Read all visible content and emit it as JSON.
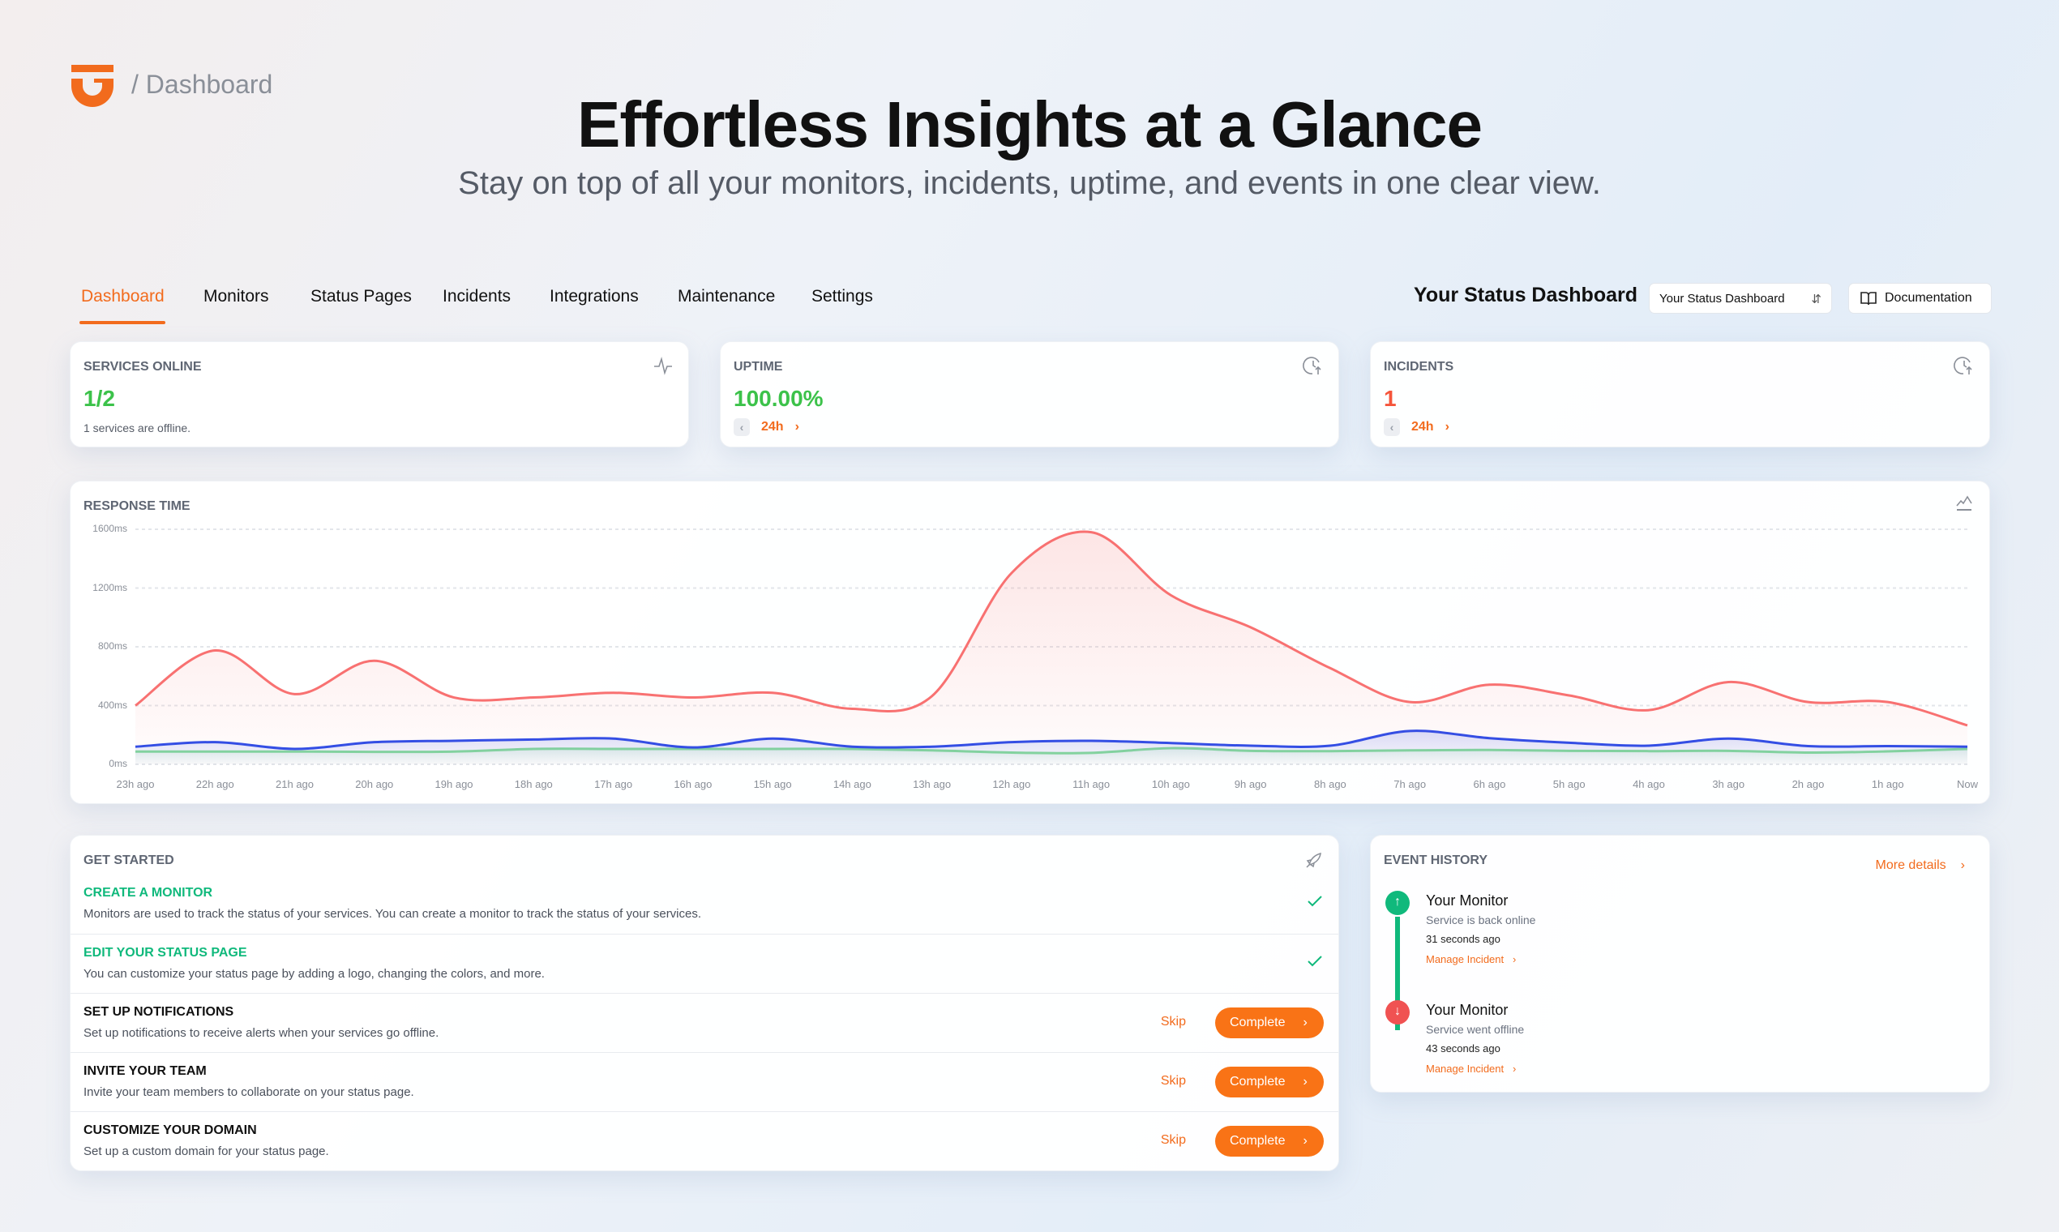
{
  "header": {
    "breadcrumb": "/ Dashboard",
    "title": "Effortless Insights at a Glance",
    "subtitle": "Stay on top of all your monitors, incidents, uptime, and events in one clear view."
  },
  "nav": {
    "tabs": [
      {
        "label": "Dashboard",
        "active": true
      },
      {
        "label": "Monitors"
      },
      {
        "label": "Status Pages"
      },
      {
        "label": "Incidents"
      },
      {
        "label": "Integrations"
      },
      {
        "label": "Maintenance"
      },
      {
        "label": "Settings"
      }
    ],
    "dashboard_title": "Your Status Dashboard",
    "select_value": "Your Status Dashboard",
    "documentation": "Documentation"
  },
  "stats": {
    "services": {
      "label": "SERVICES ONLINE",
      "value": "1/2",
      "note": "1 services are offline.",
      "icon": "activity-icon"
    },
    "uptime": {
      "label": "UPTIME",
      "value": "100.00%",
      "range": "24h",
      "icon": "clock-up-icon"
    },
    "incidents": {
      "label": "INCIDENTS",
      "value": "1",
      "range": "24h",
      "icon": "clock-up-icon"
    }
  },
  "colors": {
    "accent": "#f26b1d",
    "green": "#3cc24a",
    "red": "#f5553b",
    "teal": "#10b97c"
  },
  "chart_data": {
    "type": "line",
    "title": "RESPONSE TIME",
    "ylim": [
      0,
      1600
    ],
    "grid": true,
    "yticks": [
      "0ms",
      "400ms",
      "800ms",
      "1200ms",
      "1600ms"
    ],
    "categories": [
      "23h ago",
      "22h ago",
      "21h ago",
      "20h ago",
      "19h ago",
      "18h ago",
      "17h ago",
      "16h ago",
      "15h ago",
      "14h ago",
      "13h ago",
      "12h ago",
      "11h ago",
      "10h ago",
      "9h ago",
      "8h ago",
      "7h ago",
      "6h ago",
      "5h ago",
      "4h ago",
      "3h ago",
      "2h ago",
      "1h ago",
      "Now"
    ],
    "series": [
      {
        "color": "#f87171",
        "values": [
          400,
          775,
          478,
          705,
          455,
          455,
          487,
          455,
          487,
          378,
          464,
          1302,
          1580,
          1151,
          933,
          655,
          424,
          542,
          469,
          369,
          560,
          424,
          424,
          265
        ]
      },
      {
        "color": "#2d4de8",
        "values": [
          120,
          151,
          105,
          151,
          160,
          169,
          175,
          115,
          175,
          120,
          120,
          151,
          160,
          145,
          127,
          127,
          227,
          178,
          147,
          127,
          175,
          124,
          124,
          120
        ]
      },
      {
        "color": "#86e09a",
        "values": [
          87,
          87,
          87,
          85,
          87,
          105,
          105,
          105,
          105,
          105,
          95,
          80,
          78,
          110,
          92,
          90,
          95,
          98,
          92,
          90,
          92,
          80,
          88,
          105
        ]
      }
    ]
  },
  "get_started": {
    "title": "GET STARTED",
    "items": [
      {
        "title": "CREATE A MONITOR",
        "desc": "Monitors are used to track the status of your services. You can create a monitor to track the status of your services.",
        "done": true
      },
      {
        "title": "EDIT YOUR STATUS PAGE",
        "desc": "You can customize your status page by adding a logo, changing the colors, and more.",
        "done": true
      },
      {
        "title": "SET UP NOTIFICATIONS",
        "desc": "Set up notifications to receive alerts when your services go offline.",
        "done": false,
        "skip": "Skip",
        "complete": "Complete"
      },
      {
        "title": "INVITE YOUR TEAM",
        "desc": "Invite your team members to collaborate on your status page.",
        "done": false,
        "skip": "Skip",
        "complete": "Complete"
      },
      {
        "title": "CUSTOMIZE YOUR DOMAIN",
        "desc": "Set up a custom domain for your status page.",
        "done": false,
        "skip": "Skip",
        "complete": "Complete"
      }
    ]
  },
  "events": {
    "title": "EVENT HISTORY",
    "more": "More details",
    "items": [
      {
        "title": "Your Monitor",
        "status": "Service is back online",
        "time": "31 seconds ago",
        "link": "Manage Incident",
        "type": "up"
      },
      {
        "title": "Your Monitor",
        "status": "Service went offline",
        "time": "43 seconds ago",
        "link": "Manage Incident",
        "type": "down"
      }
    ]
  }
}
